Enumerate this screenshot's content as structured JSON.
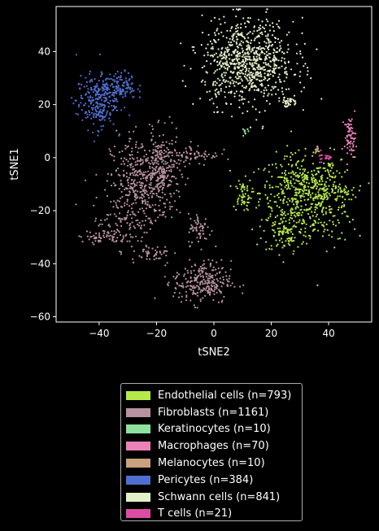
{
  "chart_data": {
    "type": "scatter",
    "xlabel": "tSNE2",
    "ylabel": "tSNE1",
    "xlim": [
      -55,
      55
    ],
    "ylim": [
      -62,
      57
    ],
    "xticks": [
      -40,
      -20,
      0,
      20,
      40
    ],
    "yticks": [
      -60,
      -40,
      -20,
      0,
      20,
      40
    ],
    "xtick_labels": [
      "−40",
      "−20",
      "0",
      "20",
      "40"
    ],
    "ytick_labels": [
      "−60",
      "−40",
      "−20",
      "0",
      "20",
      "40"
    ],
    "legend_position": "below",
    "series": [
      {
        "name": "Endothelial cells (n=793)",
        "color": "#b5ea4a",
        "clusters": [
          {
            "cx": 30,
            "cy": -13,
            "sx": 7,
            "sy": 7,
            "n": 420
          },
          {
            "cx": 39,
            "cy": -16,
            "sx": 5,
            "sy": 8,
            "n": 180
          },
          {
            "cx": 25,
            "cy": -28,
            "sx": 4,
            "sy": 4,
            "n": 110
          },
          {
            "cx": 10,
            "cy": -14,
            "sx": 1.6,
            "sy": 3,
            "n": 60
          },
          {
            "cx": 45,
            "cy": -13,
            "sx": 2,
            "sy": 1.5,
            "n": 23
          }
        ]
      },
      {
        "name": "Fibroblasts (n=1161)",
        "color": "#b792a0",
        "clusters": [
          {
            "cx": -26,
            "cy": -10,
            "sx": 5,
            "sy": 9,
            "n": 380
          },
          {
            "cx": -18,
            "cy": -5,
            "sx": 3,
            "sy": 7,
            "n": 230
          },
          {
            "cx": -33,
            "cy": -24,
            "sx": 5,
            "sy": 5,
            "n": 90
          },
          {
            "cx": -4,
            "cy": -47,
            "sx": 5,
            "sy": 4,
            "n": 260
          },
          {
            "cx": -5,
            "cy": -27,
            "sx": 2,
            "sy": 3,
            "n": 60
          },
          {
            "cx": -6,
            "cy": 1,
            "sx": 4,
            "sy": 2,
            "n": 60
          },
          {
            "cx": -40,
            "cy": -30,
            "sx": 3,
            "sy": 1,
            "n": 40
          },
          {
            "cx": -22,
            "cy": -36,
            "sx": 4,
            "sy": 1.5,
            "n": 41
          }
        ]
      },
      {
        "name": "Keratinocytes (n=10)",
        "color": "#8ee29b",
        "clusters": [
          {
            "cx": 11,
            "cy": 10,
            "sx": 0.4,
            "sy": 1,
            "n": 10
          }
        ]
      },
      {
        "name": "Macrophages (n=70)",
        "color": "#ea82b8",
        "clusters": [
          {
            "cx": 47.5,
            "cy": 8,
            "sx": 1,
            "sy": 3.5,
            "n": 70
          }
        ]
      },
      {
        "name": "Melanocytes (n=10)",
        "color": "#c8a17e",
        "clusters": [
          {
            "cx": 36,
            "cy": 3,
            "sx": 0.3,
            "sy": 0.8,
            "n": 10
          }
        ]
      },
      {
        "name": "Pericytes (n=384)",
        "color": "#4f6fd0",
        "clusters": [
          {
            "cx": -41,
            "cy": 21,
            "sx": 3.5,
            "sy": 5,
            "n": 250
          },
          {
            "cx": -33,
            "cy": 27,
            "sx": 3,
            "sy": 2.5,
            "n": 134
          }
        ]
      },
      {
        "name": "Schwann cells (n=841)",
        "color": "#e4f1c8",
        "clusters": [
          {
            "cx": 12,
            "cy": 36,
            "sx": 8,
            "sy": 8,
            "n": 800
          },
          {
            "cx": 26,
            "cy": 21,
            "sx": 2,
            "sy": 1,
            "n": 41
          }
        ]
      },
      {
        "name": "T cells (n=21)",
        "color": "#de4ca2",
        "clusters": [
          {
            "cx": 37,
            "cy": 0,
            "sx": 0.4,
            "sy": 1.5,
            "n": 8
          },
          {
            "cx": 40,
            "cy": 0,
            "sx": 0.6,
            "sy": 0.4,
            "n": 13
          }
        ]
      }
    ]
  }
}
